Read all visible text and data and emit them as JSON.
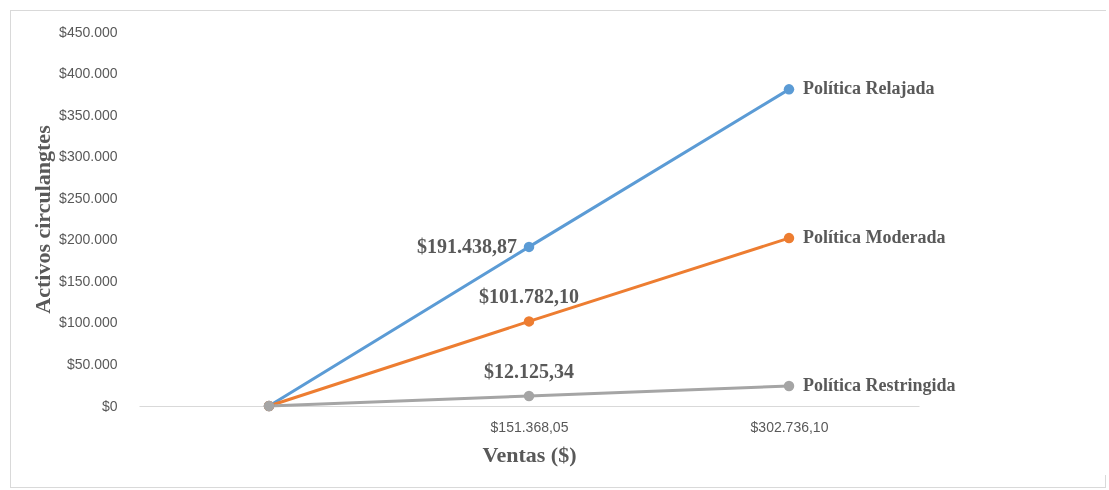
{
  "chart_data": {
    "type": "line",
    "xlabel": "Ventas ($)",
    "ylabel": "Activos circulangtes",
    "categories": [
      null,
      "$151.368,05",
      "$302.736,10"
    ],
    "ylim": [
      0,
      450000
    ],
    "yticks": [
      {
        "value": 0,
        "label": "$0"
      },
      {
        "value": 50000,
        "label": "$50.000"
      },
      {
        "value": 100000,
        "label": "$100.000"
      },
      {
        "value": 150000,
        "label": "$150.000"
      },
      {
        "value": 200000,
        "label": "$200.000"
      },
      {
        "value": 250000,
        "label": "$250.000"
      },
      {
        "value": 300000,
        "label": "$300.000"
      },
      {
        "value": 350000,
        "label": "$350.000"
      },
      {
        "value": 400000,
        "label": "$400.000"
      },
      {
        "value": 450000,
        "label": "$450.000"
      }
    ],
    "series": [
      {
        "name": "Política Relajada",
        "color": "#5b9bd5",
        "values": [
          0,
          191438.87,
          381000
        ],
        "value_labels": [
          null,
          "$191.438,87",
          null
        ]
      },
      {
        "name": "Política Moderada",
        "color": "#ed7d31",
        "values": [
          0,
          101782.1,
          202000
        ],
        "value_labels": [
          null,
          "$101.782,10",
          null
        ]
      },
      {
        "name": "Política Restringida",
        "color": "#a5a5a5",
        "values": [
          0,
          12125.34,
          24000
        ],
        "value_labels": [
          null,
          "$12.125,34",
          null
        ]
      }
    ],
    "marker": "circle",
    "grid": false,
    "legend": false
  }
}
